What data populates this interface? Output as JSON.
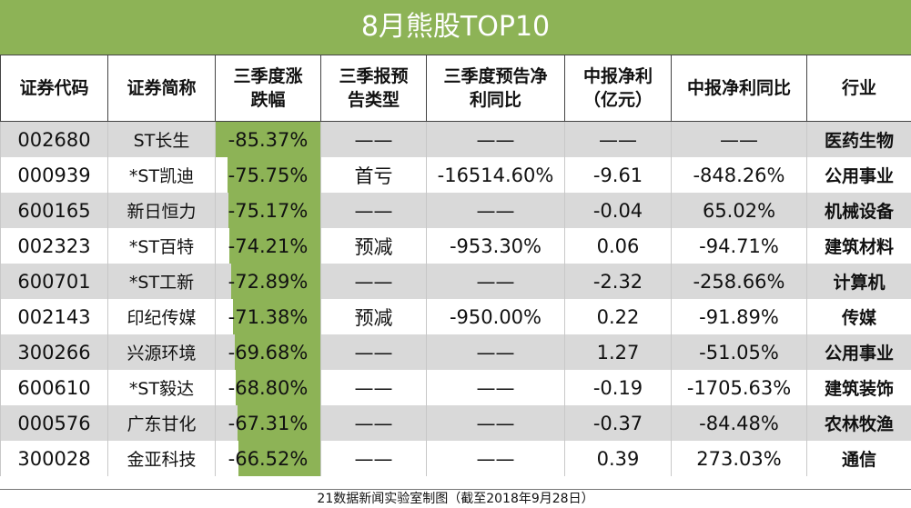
{
  "title": "8月熊股TOP10",
  "headers": [
    "证券代码",
    "证券简称",
    "三季度涨跌幅",
    "三季报预告类型",
    "三季度预告净利同比",
    "中报净利（亿元）",
    "中报净利同比",
    "行业"
  ],
  "header_lines": [
    [
      "证券代码"
    ],
    [
      "证券简称"
    ],
    [
      "三季度涨",
      "跌幅"
    ],
    [
      "三季报预",
      "告类型"
    ],
    [
      "三季度预告净",
      "利同比"
    ],
    [
      "中报净利",
      "（亿元）"
    ],
    [
      "中报净利同比"
    ],
    [
      "行业"
    ]
  ],
  "rows": [
    {
      "code": "002680",
      "name": "ST长生",
      "change": "-85.37%",
      "change_value": -85.37,
      "forecast_type": "——",
      "forecast_yoy": "——",
      "h1_profit": "——",
      "h1_yoy": "——",
      "industry": "医药生物"
    },
    {
      "code": "000939",
      "name": "*ST凯迪",
      "change": "-75.75%",
      "change_value": -75.75,
      "forecast_type": "首亏",
      "forecast_yoy": "-16514.60%",
      "h1_profit": "-9.61",
      "h1_yoy": "-848.26%",
      "industry": "公用事业"
    },
    {
      "code": "600165",
      "name": "新日恒力",
      "change": "-75.17%",
      "change_value": -75.17,
      "forecast_type": "——",
      "forecast_yoy": "——",
      "h1_profit": "-0.04",
      "h1_yoy": "65.02%",
      "industry": "机械设备"
    },
    {
      "code": "002323",
      "name": "*ST百特",
      "change": "-74.21%",
      "change_value": -74.21,
      "forecast_type": "预减",
      "forecast_yoy": "-953.30%",
      "h1_profit": "0.06",
      "h1_yoy": "-94.71%",
      "industry": "建筑材料"
    },
    {
      "code": "600701",
      "name": "*ST工新",
      "change": "-72.89%",
      "change_value": -72.89,
      "forecast_type": "——",
      "forecast_yoy": "——",
      "h1_profit": "-2.32",
      "h1_yoy": "-258.66%",
      "industry": "计算机"
    },
    {
      "code": "002143",
      "name": "印纪传媒",
      "change": "-71.38%",
      "change_value": -71.38,
      "forecast_type": "预减",
      "forecast_yoy": "-950.00%",
      "h1_profit": "0.22",
      "h1_yoy": "-91.89%",
      "industry": "传媒"
    },
    {
      "code": "300266",
      "name": "兴源环境",
      "change": "-69.68%",
      "change_value": -69.68,
      "forecast_type": "——",
      "forecast_yoy": "——",
      "h1_profit": "1.27",
      "h1_yoy": "-51.05%",
      "industry": "公用事业"
    },
    {
      "code": "600610",
      "name": "*ST毅达",
      "change": "-68.80%",
      "change_value": -68.8,
      "forecast_type": "——",
      "forecast_yoy": "——",
      "h1_profit": "-0.19",
      "h1_yoy": "-1705.63%",
      "industry": "建筑装饰"
    },
    {
      "code": "000576",
      "name": "广东甘化",
      "change": "-67.31%",
      "change_value": -67.31,
      "forecast_type": "——",
      "forecast_yoy": "——",
      "h1_profit": "-0.37",
      "h1_yoy": "-84.48%",
      "industry": "农林牧渔"
    },
    {
      "code": "300028",
      "name": "金亚科技",
      "change": "-66.52%",
      "change_value": -66.52,
      "forecast_type": "——",
      "forecast_yoy": "——",
      "h1_profit": "0.39",
      "h1_yoy": "273.03%",
      "industry": "通信"
    }
  ],
  "footer": "21数据新闻实验室制图（截至2018年9月28日）",
  "colors": {
    "accent": "#8db356",
    "stripe": "#d9d9d9"
  }
}
